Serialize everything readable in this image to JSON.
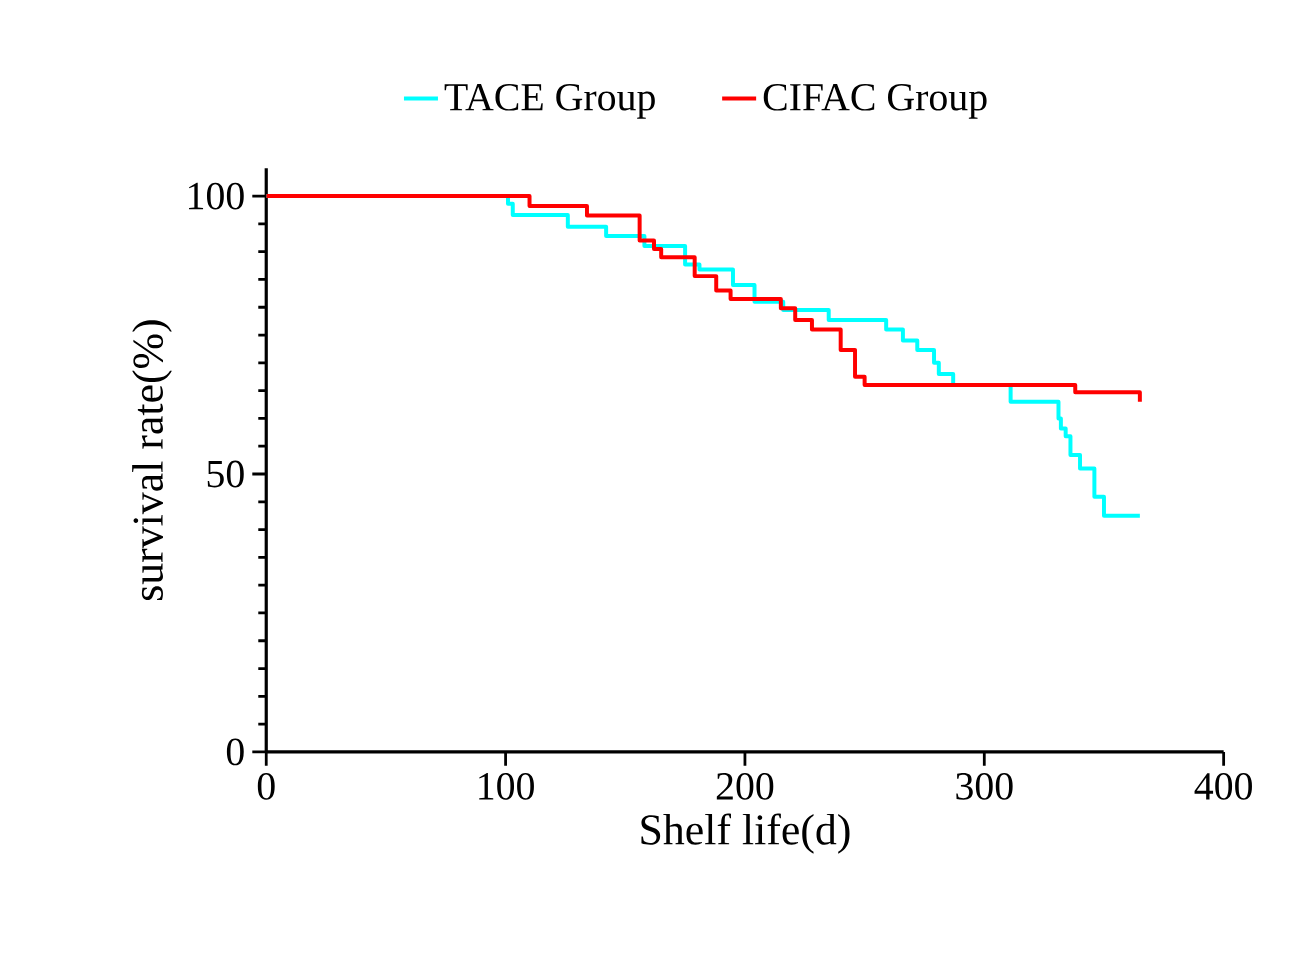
{
  "chart_data": {
    "type": "step",
    "xlabel": "Shelf life(d)",
    "ylabel": "survival rate(%)",
    "xlim": [
      0,
      400
    ],
    "ylim": [
      0,
      105
    ],
    "xticks": [
      0,
      100,
      200,
      300,
      400
    ],
    "yticks": [
      0,
      50,
      100
    ],
    "legend": "top",
    "grid": false,
    "line_style": "solid",
    "marker": "none",
    "series": [
      {
        "name": "TACE Group",
        "color": "#00ffff",
        "x": [
          0,
          101,
          103,
          126,
          142,
          158,
          175,
          181,
          195,
          204,
          216,
          235,
          259,
          266,
          272,
          279,
          281,
          287,
          311,
          331,
          332,
          334,
          336,
          340,
          346,
          350,
          365
        ],
        "values": [
          100,
          98.6,
          96.6,
          94.5,
          92.8,
          91,
          87.7,
          86.8,
          84,
          81,
          79.5,
          77.7,
          76,
          74,
          72.3,
          70,
          68,
          66,
          63,
          60,
          58.2,
          56.8,
          53.4,
          51,
          45.9,
          42.5,
          42.5
        ]
      },
      {
        "name": "CIFAC Group",
        "color": "#ff0000",
        "x": [
          0,
          110,
          134,
          156,
          162,
          165,
          179,
          188,
          194,
          215,
          221,
          228,
          240,
          246,
          250,
          338,
          365
        ],
        "values": [
          100,
          98.2,
          96.5,
          92,
          90.5,
          89,
          85.6,
          83,
          81.5,
          79.8,
          77.7,
          76,
          72.3,
          67.5,
          66,
          64.7,
          63
        ]
      }
    ]
  }
}
